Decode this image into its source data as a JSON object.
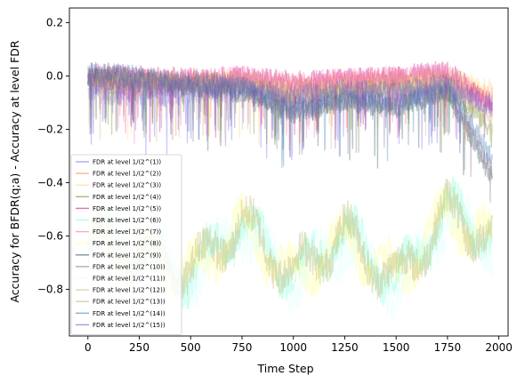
{
  "chart_data": {
    "type": "line",
    "title": "",
    "xlabel": "Time Step",
    "ylabel": "Accuracy for BFDR(q;a) - Accuracy at level FDR",
    "xlim": [
      -90,
      2045
    ],
    "ylim": [
      -0.975,
      0.255
    ],
    "xticks": [
      0,
      250,
      500,
      750,
      1000,
      1250,
      1500,
      1750,
      2000
    ],
    "yticks": [
      -0.8,
      -0.6,
      -0.4,
      -0.2,
      0.0,
      0.2
    ],
    "xtick_labels": [
      "0",
      "250",
      "500",
      "750",
      "1000",
      "1250",
      "1500",
      "1750",
      "2000"
    ],
    "ytick_labels": [
      "−0.8",
      "−0.6",
      "−0.4",
      "−0.2",
      "0.0",
      "0.2"
    ],
    "n_points": 1970,
    "grid": false,
    "legend_position": "lower-left",
    "series": [
      {
        "name": "FDR at level 1/(2^(1))",
        "color": "#7b68ee",
        "group": "upper",
        "anchors": [
          [
            0,
            -0.06
          ],
          [
            250,
            -0.08
          ],
          [
            500,
            -0.07
          ],
          [
            750,
            -0.06
          ],
          [
            1000,
            -0.09
          ],
          [
            1250,
            -0.07
          ],
          [
            1500,
            -0.08
          ],
          [
            1750,
            -0.06
          ],
          [
            1965,
            -0.1
          ]
        ]
      },
      {
        "name": "FDR at level 1/(2^(2))",
        "color": "#ff7f50",
        "group": "upper",
        "anchors": [
          [
            0,
            -0.02
          ],
          [
            250,
            -0.04
          ],
          [
            500,
            -0.03
          ],
          [
            750,
            -0.02
          ],
          [
            1000,
            -0.05
          ],
          [
            1250,
            -0.03
          ],
          [
            1500,
            -0.02
          ],
          [
            1750,
            -0.01
          ],
          [
            1965,
            -0.08
          ]
        ]
      },
      {
        "name": "FDR at level 1/(2^(3))",
        "color": "#ffd27f",
        "group": "upper",
        "anchors": [
          [
            0,
            -0.01
          ],
          [
            250,
            -0.02
          ],
          [
            500,
            -0.02
          ],
          [
            750,
            -0.01
          ],
          [
            1000,
            -0.03
          ],
          [
            1250,
            -0.02
          ],
          [
            1500,
            -0.01
          ],
          [
            1750,
            0.0
          ],
          [
            1965,
            -0.05
          ]
        ]
      },
      {
        "name": "FDR at level 1/(2^(4))",
        "color": "#6b8e23",
        "group": "upper",
        "anchors": [
          [
            0,
            0.0
          ],
          [
            250,
            -0.01
          ],
          [
            500,
            -0.02
          ],
          [
            750,
            -0.03
          ],
          [
            1000,
            -0.08
          ],
          [
            1250,
            -0.06
          ],
          [
            1500,
            -0.05
          ],
          [
            1750,
            -0.03
          ],
          [
            1965,
            -0.2
          ]
        ]
      },
      {
        "name": "FDR at level 1/(2^(5))",
        "color": "#c71585",
        "group": "upper",
        "anchors": [
          [
            0,
            0.01
          ],
          [
            250,
            0.0
          ],
          [
            500,
            -0.01
          ],
          [
            750,
            0.0
          ],
          [
            1000,
            -0.02
          ],
          [
            1250,
            -0.01
          ],
          [
            1500,
            0.0
          ],
          [
            1750,
            0.02
          ],
          [
            1965,
            -0.1
          ]
        ]
      },
      {
        "name": "FDR at level 1/(2^(6))",
        "color": "#7fffd4",
        "group": "lower",
        "anchors": [
          [
            0,
            -0.6
          ],
          [
            250,
            -0.65
          ],
          [
            500,
            -0.75
          ],
          [
            750,
            -0.55
          ],
          [
            1000,
            -0.75
          ],
          [
            1250,
            -0.58
          ],
          [
            1500,
            -0.78
          ],
          [
            1750,
            -0.5
          ],
          [
            1965,
            -0.6
          ]
        ]
      },
      {
        "name": "FDR at level 1/(2^(7))",
        "color": "#ff69b4",
        "group": "upper",
        "anchors": [
          [
            0,
            0.0
          ],
          [
            250,
            -0.01
          ],
          [
            500,
            -0.01
          ],
          [
            750,
            0.0
          ],
          [
            1000,
            -0.02
          ],
          [
            1250,
            -0.01
          ],
          [
            1500,
            0.0
          ],
          [
            1750,
            0.01
          ],
          [
            1965,
            -0.12
          ]
        ]
      },
      {
        "name": "FDR at level 1/(2^(8))",
        "color": "#ffff99",
        "group": "lower",
        "anchors": [
          [
            0,
            -0.62
          ],
          [
            250,
            -0.66
          ],
          [
            500,
            -0.74
          ],
          [
            750,
            -0.56
          ],
          [
            1000,
            -0.76
          ],
          [
            1250,
            -0.6
          ],
          [
            1500,
            -0.76
          ],
          [
            1750,
            -0.52
          ],
          [
            1965,
            -0.62
          ]
        ]
      },
      {
        "name": "FDR at level 1/(2^(9))",
        "color": "#2f4f4f",
        "group": "upper",
        "anchors": [
          [
            0,
            0.0
          ],
          [
            250,
            -0.02
          ],
          [
            500,
            -0.04
          ],
          [
            750,
            -0.06
          ],
          [
            1000,
            -0.14
          ],
          [
            1250,
            -0.1
          ],
          [
            1500,
            -0.12
          ],
          [
            1750,
            -0.06
          ],
          [
            1965,
            -0.38
          ]
        ]
      },
      {
        "name": "FDR at level 1/(2^(10))",
        "color": "#8b6f9a",
        "group": "upper",
        "anchors": [
          [
            0,
            0.01
          ],
          [
            250,
            -0.01
          ],
          [
            500,
            -0.03
          ],
          [
            750,
            -0.05
          ],
          [
            1000,
            -0.12
          ],
          [
            1250,
            -0.09
          ],
          [
            1500,
            -0.1
          ],
          [
            1750,
            -0.05
          ],
          [
            1965,
            -0.35
          ]
        ]
      },
      {
        "name": "FDR at level 1/(2^(11))",
        "color": "#e0ffff",
        "group": "lower",
        "anchors": [
          [
            0,
            -0.63
          ],
          [
            250,
            -0.64
          ],
          [
            500,
            -0.76
          ],
          [
            750,
            -0.57
          ],
          [
            1000,
            -0.77
          ],
          [
            1250,
            -0.62
          ],
          [
            1500,
            -0.8
          ],
          [
            1750,
            -0.53
          ],
          [
            1965,
            -0.64
          ]
        ]
      },
      {
        "name": "FDR at level 1/(2^(12))",
        "color": "#d2b48c",
        "group": "upper",
        "anchors": [
          [
            0,
            -0.01
          ],
          [
            250,
            -0.02
          ],
          [
            500,
            -0.03
          ],
          [
            750,
            -0.02
          ],
          [
            1000,
            -0.06
          ],
          [
            1250,
            -0.04
          ],
          [
            1500,
            -0.03
          ],
          [
            1750,
            -0.01
          ],
          [
            1965,
            -0.15
          ]
        ]
      },
      {
        "name": "FDR at level 1/(2^(13))",
        "color": "#bdb76b",
        "group": "lower",
        "anchors": [
          [
            0,
            -0.61
          ],
          [
            250,
            -0.67
          ],
          [
            500,
            -0.73
          ],
          [
            750,
            -0.55
          ],
          [
            1000,
            -0.74
          ],
          [
            1250,
            -0.59
          ],
          [
            1500,
            -0.77
          ],
          [
            1750,
            -0.51
          ],
          [
            1965,
            -0.61
          ]
        ]
      },
      {
        "name": "FDR at level 1/(2^(14))",
        "color": "#4682b4",
        "group": "upper",
        "anchors": [
          [
            0,
            0.02
          ],
          [
            250,
            0.0
          ],
          [
            500,
            -0.02
          ],
          [
            750,
            -0.04
          ],
          [
            1000,
            -0.13
          ],
          [
            1250,
            -0.08
          ],
          [
            1500,
            -0.11
          ],
          [
            1750,
            -0.04
          ],
          [
            1965,
            -0.3
          ]
        ]
      },
      {
        "name": "FDR at level 1/(2^(15))",
        "color": "#6a5acd",
        "group": "upper",
        "anchors": [
          [
            0,
            -0.03
          ],
          [
            250,
            -0.05
          ],
          [
            500,
            -0.04
          ],
          [
            750,
            -0.04
          ],
          [
            1000,
            -0.07
          ],
          [
            1250,
            -0.05
          ],
          [
            1500,
            -0.06
          ],
          [
            1750,
            -0.03
          ],
          [
            1965,
            -0.12
          ]
        ]
      }
    ]
  }
}
